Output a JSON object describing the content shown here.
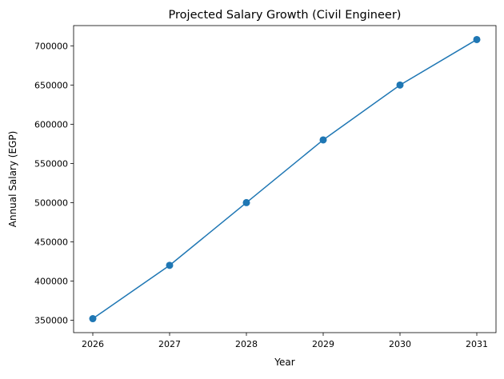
{
  "chart_data": {
    "type": "line",
    "title": "Projected Salary Growth (Civil Engineer)",
    "xlabel": "Year",
    "ylabel": "Annual Salary (EGP)",
    "x": [
      2026,
      2027,
      2028,
      2029,
      2030,
      2031
    ],
    "series": [
      {
        "values": [
          352000,
          420000,
          500000,
          580000,
          650000,
          708000
        ],
        "color": "#1f77b4",
        "marker": "circle"
      }
    ],
    "xticks": [
      "2026",
      "2027",
      "2028",
      "2029",
      "2030",
      "2031"
    ],
    "yticks": [
      "350000",
      "400000",
      "450000",
      "500000",
      "550000",
      "600000",
      "650000",
      "700000"
    ],
    "xlim": [
      2025.75,
      2031.25
    ],
    "ylim": [
      334200,
      725800
    ],
    "grid": false
  }
}
